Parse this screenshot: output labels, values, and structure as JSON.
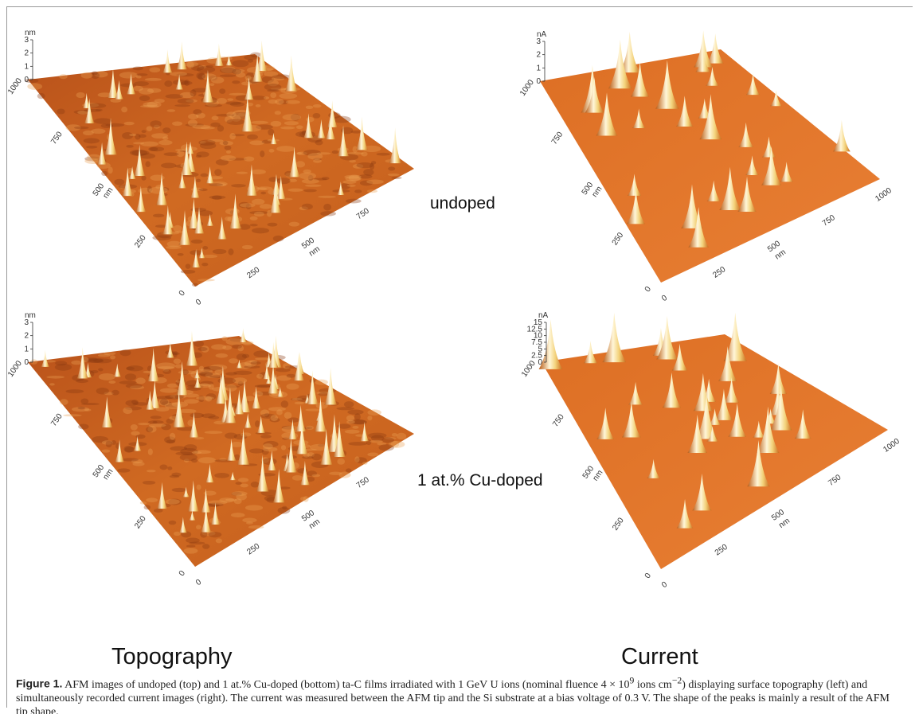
{
  "panels": [
    {
      "z_unit": "nm",
      "z_ticks": [
        3,
        2,
        1,
        0
      ],
      "y_ticks": [
        1000,
        750,
        500,
        250,
        0
      ],
      "y_unit": "nm",
      "x_ticks": [
        0,
        250,
        500,
        750
      ],
      "x_unit": "nm"
    },
    {
      "z_unit": "nA",
      "z_ticks": [
        3,
        2,
        1,
        0
      ],
      "y_ticks": [
        1000,
        750,
        500,
        250,
        0
      ],
      "y_unit": "nm",
      "x_ticks": [
        0,
        250,
        500,
        750,
        1000
      ],
      "x_unit": "nm"
    },
    {
      "z_unit": "nm",
      "z_ticks": [
        3,
        2,
        1,
        0
      ],
      "y_ticks": [
        1000,
        750,
        500,
        250,
        0
      ],
      "y_unit": "nm",
      "x_ticks": [
        0,
        250,
        500,
        750
      ],
      "x_unit": "nm"
    },
    {
      "z_unit": "nA",
      "z_ticks": [
        15,
        12.5,
        10,
        7.5,
        5,
        2.5,
        0
      ],
      "y_ticks": [
        1000,
        750,
        500,
        250,
        0
      ],
      "y_unit": "nm",
      "x_ticks": [
        0,
        250,
        500,
        750,
        1000
      ],
      "x_unit": "nm"
    }
  ],
  "row_labels": [
    "undoped",
    "1 at.% Cu-doped"
  ],
  "column_labels": [
    "Topography",
    "Current"
  ],
  "caption": {
    "label": "Figure 1.",
    "parts": [
      "AFM images of undoped (top) and 1 at.% Cu-doped (bottom) ta-C films irradiated with 1 GeV U ions (nominal fluence 4 × 10",
      "9",
      " ions cm",
      "−2",
      ") displaying surface topography (left) and simultaneously recorded current images (right). The current was measured between the AFM tip and the Si substrate at a bias voltage of 0.3 V. The shape of the peaks is mainly a result of the AFM tip shape."
    ]
  }
}
